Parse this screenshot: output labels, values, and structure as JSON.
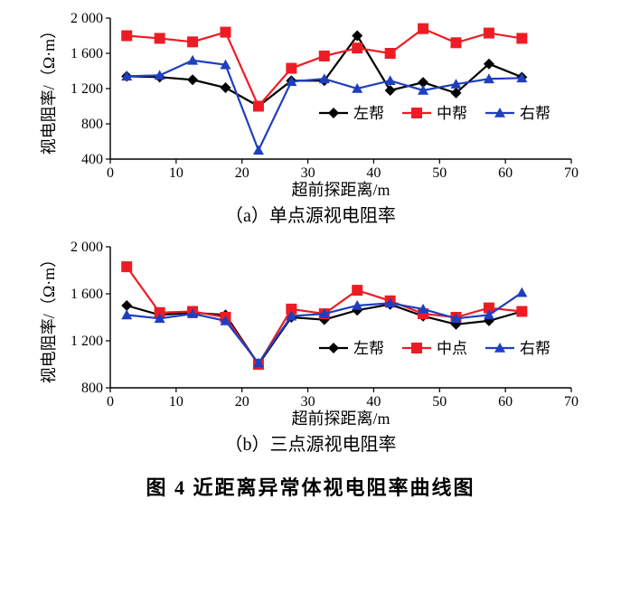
{
  "figure_caption": "图 4  近距离异常体视电阻率曲线图",
  "colors": {
    "series_left": "#000000",
    "series_center": "#ed1c24",
    "series_right": "#1f3fbf",
    "axis": "#000000",
    "background": "#ffffff"
  },
  "legend_a": {
    "left": "左帮",
    "center": "中帮",
    "right": "右帮"
  },
  "legend_b": {
    "left": "左帮",
    "center": "中点",
    "right": "右帮"
  },
  "marker": {
    "left": "diamond",
    "center": "square",
    "right": "triangle",
    "size": 6
  },
  "line_width": 2.2,
  "x_values": [
    2.5,
    7.5,
    12.5,
    17.5,
    22.5,
    27.5,
    32.5,
    37.5,
    42.5,
    47.5,
    52.5,
    57.5,
    62.5
  ],
  "chart_a": {
    "subcaption": "（a）单点源视电阻率",
    "xlabel": "超前探距离/m",
    "ylabel": "视电阻率/（Ω·m）",
    "xlim": [
      0,
      70
    ],
    "xtick_step": 10,
    "ylim": [
      400,
      2000
    ],
    "ytick_step": 400,
    "ytick_fmt": "space1000",
    "series": {
      "left": [
        1340,
        1330,
        1300,
        1210,
        1000,
        1290,
        1290,
        1800,
        1180,
        1270,
        1150,
        1480,
        1330
      ],
      "center": [
        1800,
        1770,
        1730,
        1840,
        1000,
        1430,
        1570,
        1660,
        1600,
        1880,
        1720,
        1830,
        1770
      ],
      "right": [
        1340,
        1350,
        1520,
        1470,
        500,
        1280,
        1310,
        1200,
        1290,
        1180,
        1250,
        1310,
        1320
      ]
    }
  },
  "chart_b": {
    "subcaption": "（b）三点源视电阻率",
    "xlabel": "超前探距离/m",
    "ylabel": "视电阻率/（Ω·m）",
    "xlim": [
      0,
      70
    ],
    "xtick_step": 10,
    "ylim": [
      800,
      2000
    ],
    "ytick_step": 400,
    "ytick_fmt": "space1000",
    "series": {
      "left": [
        1500,
        1420,
        1440,
        1420,
        1000,
        1400,
        1380,
        1460,
        1510,
        1410,
        1340,
        1370,
        1450
      ],
      "center": [
        1830,
        1440,
        1450,
        1400,
        1000,
        1470,
        1430,
        1630,
        1540,
        1430,
        1400,
        1480,
        1450
      ],
      "right": [
        1420,
        1390,
        1430,
        1370,
        1010,
        1410,
        1430,
        1500,
        1520,
        1470,
        1390,
        1420,
        1610
      ]
    }
  }
}
